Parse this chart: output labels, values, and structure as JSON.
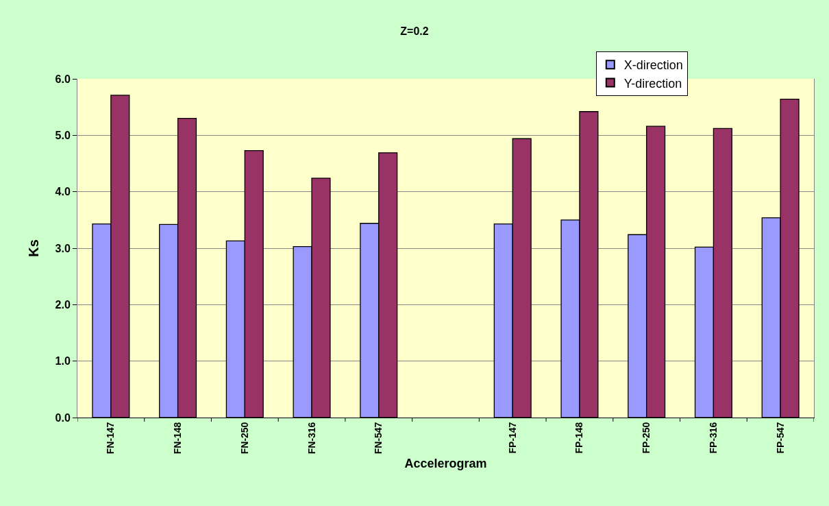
{
  "chart_data": {
    "type": "bar",
    "title": "Z=0.2",
    "xlabel": "Accelerogram",
    "ylabel": "Ks",
    "categories": [
      "FN-147",
      "FN-148",
      "FN-250",
      "FN-316",
      "FN-547",
      null,
      "FP-147",
      "FP-148",
      "FP-250",
      "FP-316",
      "FP-547"
    ],
    "series": [
      {
        "name": "X-direction",
        "color": "#9999ff",
        "values": [
          3.43,
          3.42,
          3.13,
          3.03,
          3.44,
          null,
          3.43,
          3.5,
          3.24,
          3.02,
          3.54
        ]
      },
      {
        "name": "Y-direction",
        "color": "#993366",
        "values": [
          5.71,
          5.3,
          4.73,
          4.24,
          4.69,
          null,
          4.94,
          5.42,
          5.16,
          5.12,
          5.64
        ]
      }
    ],
    "ylim": [
      0,
      6
    ],
    "yticks": [
      {
        "value": 0,
        "label": "0.0"
      },
      {
        "value": 1,
        "label": "1.0"
      },
      {
        "value": 2,
        "label": "2.0"
      },
      {
        "value": 3,
        "label": "3.0"
      },
      {
        "value": 4,
        "label": "4.0"
      },
      {
        "value": 5,
        "label": "5.0"
      },
      {
        "value": 6,
        "label": "6.0"
      }
    ],
    "grid": "y",
    "legend": "top right"
  }
}
